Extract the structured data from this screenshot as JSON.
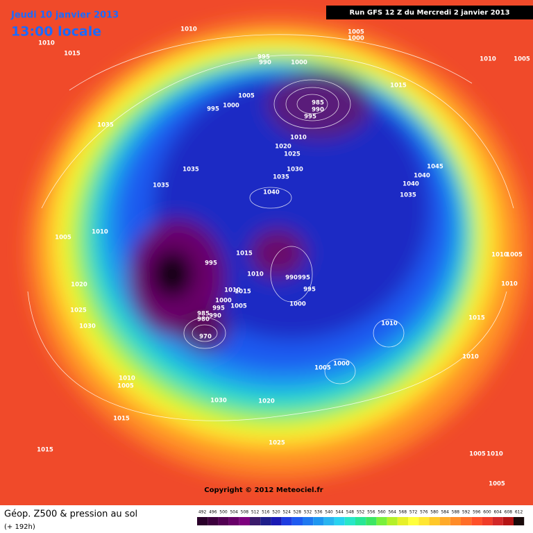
{
  "header": {
    "date": "Jeudi 10 janvier 2013",
    "time": "13:00 locale",
    "run": "Run GFS 12 Z du Mercredi 2 janvier 2013"
  },
  "map": {
    "isobar_labels": [
      1010,
      1010,
      1015,
      1005,
      1000,
      1010,
      1005,
      995,
      990,
      1000,
      1015,
      1005,
      995,
      1000,
      985,
      990,
      995,
      1035,
      1010,
      1020,
      1025,
      1045,
      1035,
      1030,
      1035,
      1040,
      1040,
      1035,
      1040,
      1035,
      1010,
      1005,
      1015,
      995,
      1010,
      990,
      995,
      995,
      1020,
      1010,
      1015,
      1000,
      1000,
      1005,
      995,
      985,
      990,
      980,
      1010,
      1025,
      1030,
      1015,
      970,
      1010,
      1005,
      1000,
      1010,
      1005,
      1030,
      1020,
      1015,
      1025,
      1015,
      1005,
      1010,
      1005,
      1010,
      1005,
      1010
    ],
    "copyright": "Copyright © 2012 Meteociel.fr"
  },
  "footer": {
    "title": "Géop. Z500 & pression au sol",
    "lead_time": "(+ 192h)",
    "scale": {
      "labels": [
        492,
        496,
        500,
        504,
        508,
        512,
        516,
        520,
        524,
        528,
        532,
        536,
        540,
        544,
        548,
        552,
        556,
        560,
        564,
        568,
        572,
        576,
        580,
        584,
        588,
        592,
        596,
        600,
        604,
        608,
        612
      ],
      "colors": [
        "#2a002a",
        "#3d003d",
        "#520052",
        "#680068",
        "#7e007e",
        "#3a1a6a",
        "#1e1e8a",
        "#1a1ab4",
        "#1e3ce0",
        "#1e5af0",
        "#1e78f0",
        "#1e96f0",
        "#28b4f0",
        "#28d2f0",
        "#28e6c8",
        "#28e696",
        "#3ce664",
        "#78f03c",
        "#b4f028",
        "#e6f028",
        "#ffff3c",
        "#ffe632",
        "#ffc828",
        "#ffaa28",
        "#ff8c28",
        "#ff6e28",
        "#ff5028",
        "#f03c28",
        "#d22828",
        "#b41414",
        "#1a0a0a"
      ]
    }
  }
}
